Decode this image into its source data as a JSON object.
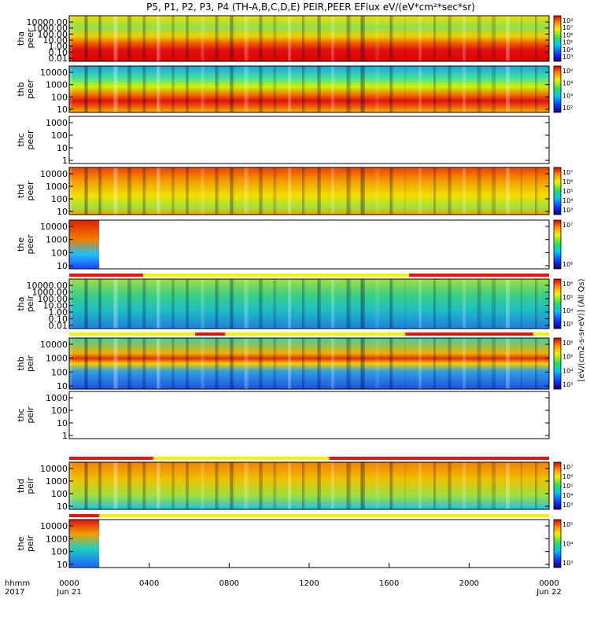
{
  "title": "P5, P1, P2, P3, P4 (TH-A,B,C,D,E) PEIR,PEER EFlux eV/(eV*cm²*sec*sr)",
  "colors": {
    "red": "#e8140c",
    "yellow": "#f5f200",
    "frame": "#000000"
  },
  "chart_data": [
    {
      "type": "heatmap",
      "probe": "tha",
      "species": "peer",
      "ylabel": [
        "tha",
        "peer"
      ],
      "yticks": [
        "10000.00",
        "1000.00",
        "100.00",
        "10.00",
        "1.00",
        "0.10",
        "0.01"
      ],
      "colorbar_ticks": [
        "10⁸",
        "10⁷",
        "10⁶",
        "10⁵",
        "10⁴",
        "10³"
      ],
      "colorbar_label": "[eV/(cm2-s-sr-eV)] (All Qs)",
      "has_data": true
    },
    {
      "type": "heatmap",
      "probe": "thb",
      "species": "peer",
      "ylabel": [
        "thb",
        "peer"
      ],
      "yticks": [
        "10000",
        "1000",
        "100",
        "10"
      ],
      "colorbar_ticks": [
        "10⁶",
        "10⁴",
        "10³",
        "10²"
      ],
      "colorbar_label": "[eV/(cm2-s-sr-eV)] (All Qs)",
      "has_data": true
    },
    {
      "type": "heatmap",
      "probe": "thc",
      "species": "peer",
      "ylabel": [
        "thc",
        "peer"
      ],
      "yticks": [
        "1000",
        "100",
        "10",
        "1"
      ],
      "colorbar_ticks": [],
      "colorbar_label": "",
      "has_data": false
    },
    {
      "type": "heatmap",
      "probe": "thd",
      "species": "peer",
      "ylabel": [
        "thd",
        "peer"
      ],
      "yticks": [
        "10000",
        "1000",
        "100",
        "10"
      ],
      "colorbar_ticks": [
        "10⁷",
        "10⁶",
        "10⁵",
        "10⁴",
        "10³"
      ],
      "colorbar_label": "[eV/(cm2-s-sr-eV)] (All Qs)",
      "has_data": true
    },
    {
      "type": "heatmap",
      "probe": "the",
      "species": "peer",
      "ylabel": [
        "the",
        "peer"
      ],
      "yticks": [
        "10000",
        "1000",
        "100",
        "10"
      ],
      "colorbar_ticks": [
        "10⁷",
        "10⁶"
      ],
      "colorbar_label": "[eV/(cm2-s-sr-eV)] (All Qs)",
      "has_data": true,
      "data_until_hour": 1.5
    },
    {
      "type": "heatmap",
      "probe": "tha",
      "species": "peir",
      "ylabel": [
        "tha",
        "peir"
      ],
      "yticks": [
        "10000.00",
        "1000.00",
        "100.00",
        "10.00",
        "1.00",
        "0.10",
        "0.01"
      ],
      "colorbar_ticks": [
        "10⁶",
        "10⁵",
        "10⁴",
        "10³"
      ],
      "colorbar_label": "[eV/(cm2-s-sr-eV)] (All Qs)",
      "has_data": true,
      "mode_bar": [
        {
          "from": 0,
          "to": 3.7,
          "mode": "red"
        },
        {
          "from": 3.7,
          "to": 17.0,
          "mode": "yellow"
        },
        {
          "from": 17.0,
          "to": 24,
          "mode": "red"
        }
      ]
    },
    {
      "type": "heatmap",
      "probe": "thb",
      "species": "peir",
      "ylabel": [
        "thb",
        "peir"
      ],
      "yticks": [
        "10000",
        "1000",
        "100",
        "10"
      ],
      "colorbar_ticks": [
        "10⁶",
        "10⁵",
        "10⁴",
        "10³"
      ],
      "colorbar_label": "[eV/(cm2-s-sr-eV)] (All Qs)",
      "has_data": true,
      "mode_bar": [
        {
          "from": 0,
          "to": 6.3,
          "mode": "yellow"
        },
        {
          "from": 6.3,
          "to": 7.8,
          "mode": "red"
        },
        {
          "from": 7.8,
          "to": 16.8,
          "mode": "yellow"
        },
        {
          "from": 16.8,
          "to": 23.2,
          "mode": "red"
        },
        {
          "from": 23.2,
          "to": 24,
          "mode": "yellow"
        }
      ]
    },
    {
      "type": "heatmap",
      "probe": "thc",
      "species": "peir",
      "ylabel": [
        "thc",
        "peir"
      ],
      "yticks": [
        "1000",
        "100",
        "10",
        "1"
      ],
      "colorbar_ticks": [],
      "colorbar_label": "[eV/(cm2-s-sr-eV)] (All Qs)",
      "has_data": false
    },
    {
      "type": "heatmap",
      "probe": "thd",
      "species": "peir",
      "ylabel": [
        "thd",
        "peir"
      ],
      "yticks": [
        "10000",
        "1000",
        "100",
        "10"
      ],
      "colorbar_ticks": [
        "10⁷",
        "10⁶",
        "10⁵",
        "10⁴",
        "10³"
      ],
      "colorbar_label": "[eV/(cm2-s-sr-eV)] (All Qs)",
      "has_data": true,
      "mode_bar": [
        {
          "from": 0,
          "to": 4.2,
          "mode": "red"
        },
        {
          "from": 4.2,
          "to": 13.0,
          "mode": "yellow"
        },
        {
          "from": 13.0,
          "to": 24,
          "mode": "red"
        }
      ]
    },
    {
      "type": "heatmap",
      "probe": "the",
      "species": "peir",
      "ylabel": [
        "the",
        "peir"
      ],
      "yticks": [
        "10000",
        "1000",
        "100",
        "10"
      ],
      "colorbar_ticks": [
        "10⁵",
        "10⁴",
        "10³"
      ],
      "colorbar_label": "[eV/(cm2-s-sr-eV)] (All Qs)",
      "has_data": true,
      "data_until_hour": 1.5,
      "mode_bar": [
        {
          "from": 0,
          "to": 1.5,
          "mode": "red"
        },
        {
          "from": 1.5,
          "to": 24,
          "mode": "yellow"
        }
      ]
    }
  ],
  "xaxis": {
    "row_label_top": "hhmm",
    "row_label_bottom": "2017",
    "ticks": [
      {
        "hour": 0,
        "top": "0000",
        "bottom": "Jun 21"
      },
      {
        "hour": 4,
        "top": "0400",
        "bottom": ""
      },
      {
        "hour": 8,
        "top": "0800",
        "bottom": ""
      },
      {
        "hour": 12,
        "top": "1200",
        "bottom": ""
      },
      {
        "hour": 16,
        "top": "1600",
        "bottom": ""
      },
      {
        "hour": 20,
        "top": "2000",
        "bottom": ""
      },
      {
        "hour": 24,
        "top": "0000",
        "bottom": "Jun 22"
      }
    ],
    "range_hours": [
      0,
      24
    ]
  },
  "right_axis_label": "[eV/(cm2-s-sr-eV)] (All Qs)"
}
